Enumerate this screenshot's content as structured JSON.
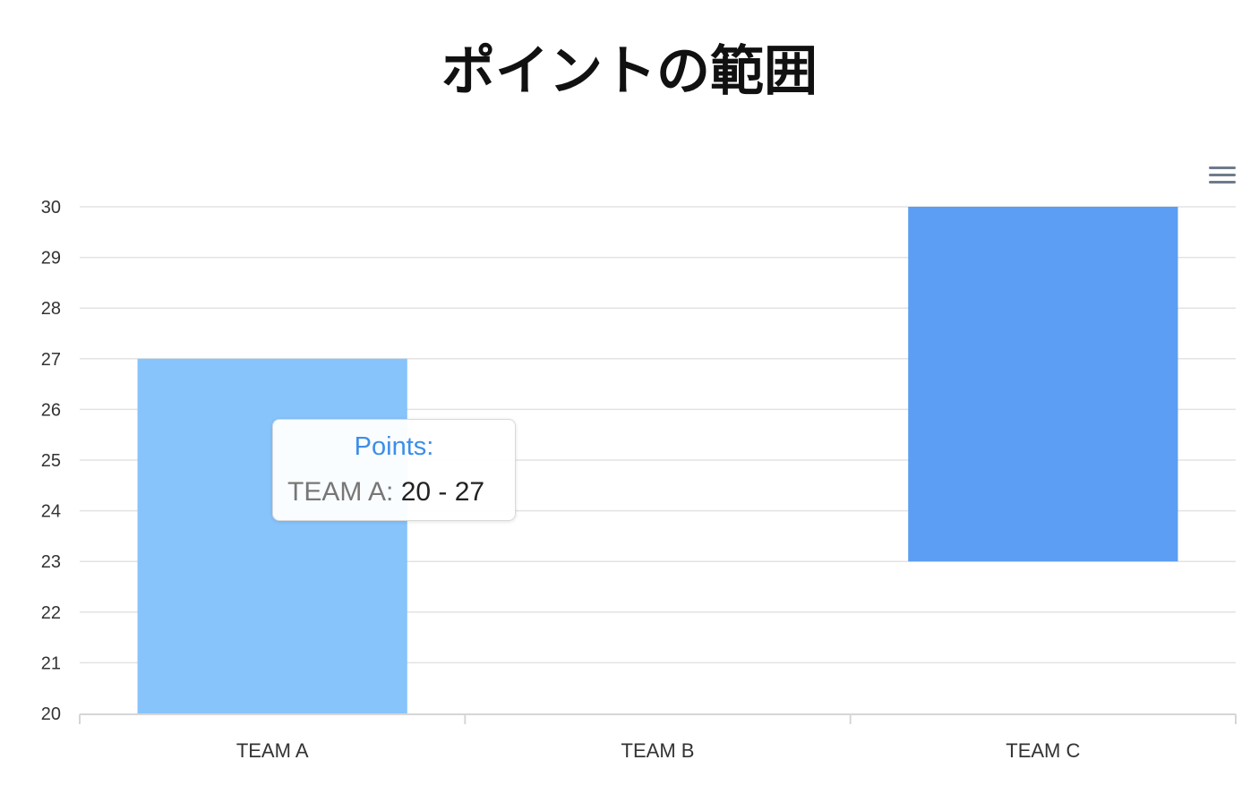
{
  "chart_data": {
    "type": "bar",
    "title": "ポイントの範囲",
    "categories": [
      "TEAM A",
      "TEAM B",
      "TEAM C"
    ],
    "series": [
      {
        "ranges": [
          [
            20,
            27
          ],
          null,
          [
            23,
            30
          ]
        ]
      }
    ],
    "ylim": [
      20,
      30
    ],
    "yticks": [
      "20",
      "21",
      "22",
      "23",
      "24",
      "25",
      "26",
      "27",
      "28",
      "29",
      "30"
    ],
    "grid": true,
    "colors": [
      "#87c4fc",
      "#5b9ef3"
    ],
    "tooltip": {
      "title": "Points:",
      "series_label": "TEAM A:",
      "value": "20 - 27"
    }
  },
  "toolbar": {
    "menu_icon": "hamburger-menu-icon"
  }
}
